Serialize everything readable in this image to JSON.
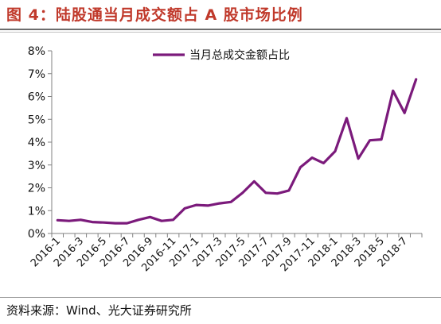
{
  "title": "图 4：陆股通当月成交额占 A 股市场比例",
  "source": "资料来源：Wind、光大证券研究所",
  "chart_data": {
    "type": "line",
    "title": "",
    "xlabel": "",
    "ylabel": "",
    "ylim": [
      0,
      8
    ],
    "yticks": [
      "0%",
      "1%",
      "2%",
      "3%",
      "4%",
      "5%",
      "6%",
      "7%",
      "8%"
    ],
    "grid": false,
    "legend_position": "top-center",
    "x_tick_labels": [
      "2016-1",
      "2016-3",
      "2016-5",
      "2016-7",
      "2016-9",
      "2016-11",
      "2017-1",
      "2017-3",
      "2017-5",
      "2017-7",
      "2017-9",
      "2017-11",
      "2018-1",
      "2018-3",
      "2018-5",
      "2018-7"
    ],
    "x": [
      "2016-1",
      "2016-2",
      "2016-3",
      "2016-4",
      "2016-5",
      "2016-6",
      "2016-7",
      "2016-8",
      "2016-9",
      "2016-10",
      "2016-11",
      "2016-12",
      "2017-1",
      "2017-2",
      "2017-3",
      "2017-4",
      "2017-5",
      "2017-6",
      "2017-7",
      "2017-8",
      "2017-9",
      "2017-10",
      "2017-11",
      "2017-12",
      "2018-1",
      "2018-2",
      "2018-3",
      "2018-4",
      "2018-5",
      "2018-6",
      "2018-7",
      "2018-8"
    ],
    "series": [
      {
        "name": "当月总成交金额占比",
        "color": "#7b1a7b",
        "values": [
          0.58,
          0.55,
          0.6,
          0.5,
          0.48,
          0.45,
          0.45,
          0.6,
          0.72,
          0.55,
          0.6,
          1.1,
          1.25,
          1.22,
          1.32,
          1.38,
          1.78,
          2.28,
          1.78,
          1.75,
          1.88,
          2.9,
          3.32,
          3.08,
          3.6,
          5.05,
          3.28,
          4.08,
          4.12,
          6.25,
          5.28,
          6.75
        ]
      }
    ]
  }
}
